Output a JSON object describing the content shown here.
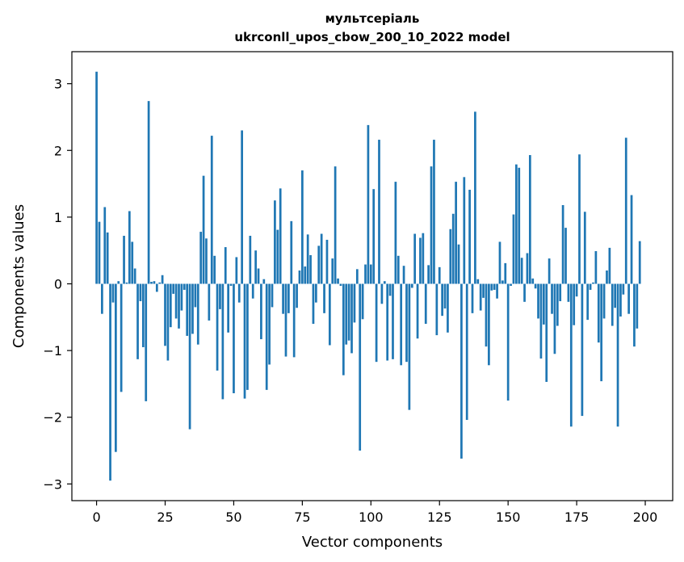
{
  "chart_data": {
    "type": "bar",
    "title_line1": "мультсеріаль",
    "title_line2": "ukrconll_upos_cbow_200_10_2022 model",
    "xlabel": "Vector components",
    "ylabel": "Components values",
    "xlim": [
      -9,
      210
    ],
    "ylim": [
      -3.25,
      3.48
    ],
    "xticks": [
      0,
      25,
      50,
      75,
      100,
      125,
      150,
      175,
      200
    ],
    "yticks": [
      -3,
      -2,
      -1,
      0,
      1,
      2,
      3
    ],
    "ytick_labels": [
      "−3",
      "−2",
      "−1",
      "0",
      "1",
      "2",
      "3"
    ],
    "bar_color": "#1f77b4",
    "grid": false,
    "values": [
      3.18,
      0.93,
      -0.45,
      1.15,
      0.77,
      -2.95,
      -0.28,
      -2.52,
      0.04,
      -1.62,
      0.72,
      0.02,
      1.09,
      0.63,
      0.23,
      -1.13,
      -0.26,
      -0.95,
      -1.76,
      2.74,
      0.03,
      0.04,
      -0.12,
      0.02,
      0.13,
      -0.93,
      -1.15,
      -0.65,
      -0.15,
      -0.52,
      -0.67,
      -0.4,
      -0.09,
      -0.78,
      -2.18,
      -0.75,
      -0.35,
      -0.91,
      0.78,
      1.62,
      0.68,
      -0.55,
      2.22,
      0.42,
      -1.3,
      -0.38,
      -1.73,
      0.55,
      -0.73,
      -0.03,
      -1.64,
      0.4,
      -0.28,
      2.3,
      -1.72,
      -1.59,
      0.72,
      -0.22,
      0.5,
      0.23,
      -0.83,
      0.07,
      -1.59,
      -1.21,
      -0.35,
      1.25,
      0.81,
      1.43,
      -0.45,
      -1.09,
      -0.44,
      0.94,
      -1.1,
      -0.36,
      0.2,
      1.7,
      0.26,
      0.74,
      0.43,
      -0.6,
      -0.28,
      0.57,
      0.75,
      -0.44,
      0.66,
      -0.92,
      0.38,
      1.76,
      0.08,
      -0.03,
      -1.37,
      -0.91,
      -0.85,
      -1.04,
      -0.58,
      0.22,
      -2.5,
      -0.53,
      0.29,
      2.38,
      0.29,
      1.42,
      -1.17,
      2.16,
      -0.3,
      0.04,
      -1.15,
      -0.18,
      -1.13,
      1.53,
      0.42,
      -1.22,
      0.27,
      -1.17,
      -1.89,
      -0.06,
      0.75,
      -0.82,
      0.69,
      0.76,
      -0.6,
      0.28,
      1.76,
      2.16,
      -0.77,
      0.25,
      -0.48,
      -0.37,
      -0.73,
      0.82,
      1.05,
      1.53,
      0.59,
      -2.62,
      1.6,
      -2.04,
      1.41,
      -0.44,
      2.58,
      0.07,
      -0.4,
      -0.21,
      -0.94,
      -1.22,
      -0.1,
      -0.09,
      -0.22,
      0.63,
      0.05,
      0.31,
      -1.75,
      -0.03,
      1.04,
      1.79,
      1.74,
      0.39,
      -0.27,
      0.46,
      1.93,
      0.08,
      -0.07,
      -0.52,
      -1.12,
      -0.61,
      -1.47,
      0.38,
      -0.45,
      -1.05,
      -0.63,
      -0.26,
      1.18,
      0.84,
      -0.27,
      -2.14,
      -0.62,
      -0.19,
      1.94,
      -1.98,
      1.08,
      -0.54,
      -0.09,
      0.02,
      0.49,
      -0.88,
      -1.46,
      -0.52,
      0.2,
      0.54,
      -0.63,
      -0.36,
      -2.14,
      -0.49,
      -0.16,
      2.19,
      -0.45,
      1.33,
      -0.94,
      -0.67,
      0.64
    ]
  }
}
